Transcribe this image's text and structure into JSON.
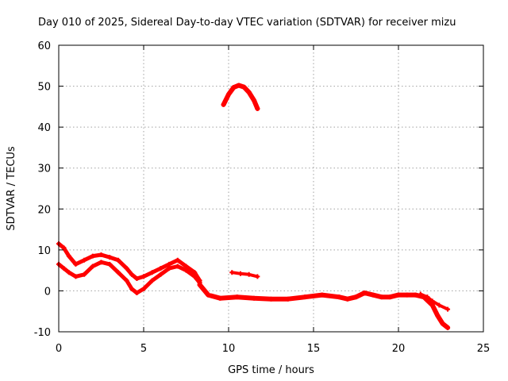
{
  "chart_data": {
    "type": "scatter",
    "title": "Day 010 of 2025, Sidereal Day-to-day VTEC variation (SDTVAR) for receiver mizu",
    "xlabel": "GPS time / hours",
    "ylabel": "SDTVAR / TECUs",
    "xlim": [
      0,
      25
    ],
    "ylim": [
      -10,
      60
    ],
    "xticks": [
      "0",
      "5",
      "10",
      "15",
      "20",
      "25"
    ],
    "yticks": [
      "-10",
      "0",
      "10",
      "20",
      "30",
      "40",
      "50",
      "60"
    ],
    "grid": true,
    "color": "#ff0000",
    "series": [
      {
        "name": "band-upper-early",
        "x": [
          0.0,
          0.3,
          0.6,
          1.0,
          1.5,
          2.0,
          2.5,
          3.0,
          3.5,
          4.0,
          4.3,
          4.6,
          5.0,
          5.5,
          6.0,
          6.5,
          7.0,
          7.5,
          8.0,
          8.3
        ],
        "y": [
          11.5,
          10.5,
          8.5,
          6.5,
          7.5,
          8.5,
          8.8,
          8.2,
          7.5,
          5.5,
          4.0,
          3.0,
          3.5,
          4.5,
          5.5,
          6.5,
          7.5,
          6.0,
          4.5,
          2.5
        ]
      },
      {
        "name": "band-lower-early",
        "x": [
          0.0,
          0.3,
          0.6,
          1.0,
          1.5,
          2.0,
          2.5,
          3.0,
          3.5,
          4.0,
          4.3,
          4.6,
          5.0,
          5.5,
          6.0,
          6.5,
          7.0,
          7.5,
          8.0,
          8.3
        ],
        "y": [
          6.5,
          5.5,
          4.5,
          3.5,
          4.0,
          6.0,
          7.0,
          6.5,
          4.5,
          2.5,
          0.5,
          -0.5,
          0.5,
          2.5,
          4.0,
          5.5,
          6.0,
          5.0,
          3.5,
          2.0
        ]
      },
      {
        "name": "band-after-nine",
        "x": [
          8.3,
          8.8,
          9.5,
          10.5,
          11.5,
          12.5,
          13.5,
          14.5,
          15.5,
          16.5,
          17.0,
          17.5,
          18.0,
          18.5,
          19.0,
          19.5,
          20.0,
          20.5,
          21.0,
          21.5,
          22.0,
          22.3,
          22.6,
          22.9
        ],
        "y": [
          1.5,
          -1.0,
          -1.8,
          -1.5,
          -1.8,
          -2.0,
          -2.0,
          -1.5,
          -1.0,
          -1.5,
          -2.0,
          -1.5,
          -0.5,
          -1.0,
          -1.5,
          -1.5,
          -1.0,
          -1.0,
          -1.0,
          -1.5,
          -3.5,
          -6.0,
          -8.0,
          -9.0
        ]
      },
      {
        "name": "band-after-nine-upper",
        "x": [
          21.3,
          21.7,
          22.0,
          22.4,
          22.9
        ],
        "y": [
          -0.8,
          -1.5,
          -2.5,
          -3.5,
          -4.5
        ]
      },
      {
        "name": "arc-near-ten",
        "x": [
          9.7,
          10.0,
          10.3,
          10.6,
          10.9,
          11.2,
          11.5,
          11.7
        ],
        "y": [
          45.5,
          48.0,
          49.7,
          50.2,
          49.8,
          48.5,
          46.5,
          44.5
        ]
      },
      {
        "name": "segment-near-ten",
        "x": [
          10.2,
          10.7,
          11.2,
          11.7
        ],
        "y": [
          4.5,
          4.2,
          4.0,
          3.5
        ]
      }
    ]
  }
}
